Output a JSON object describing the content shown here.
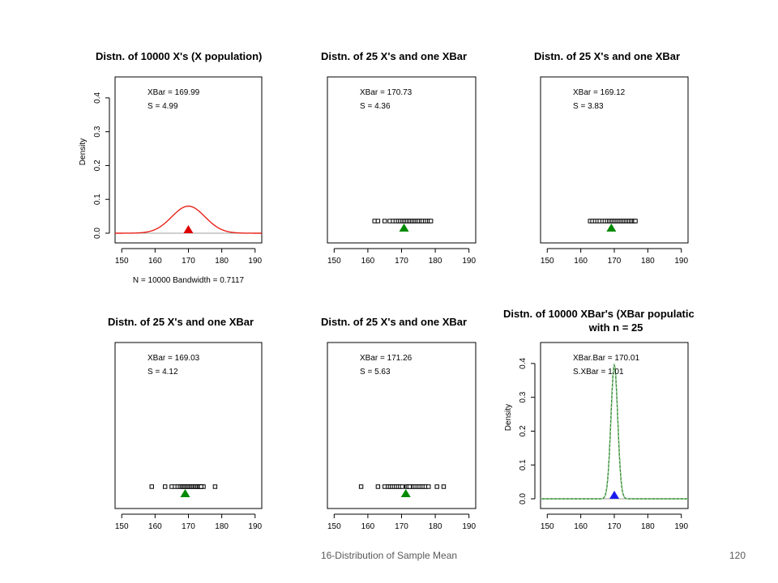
{
  "footer": {
    "title": "16-Distribution of Sample Mean",
    "page": "120"
  },
  "chart_data": [
    {
      "type": "line",
      "title": "Distn. of 10000 X's (X population)",
      "xlabel": "N = 10000   Bandwidth = 0.7117",
      "ylabel": "Density",
      "xlim": [
        148,
        192
      ],
      "ylim": [
        0,
        0.45
      ],
      "x_ticks": [
        "150",
        "160",
        "170",
        "180",
        "190"
      ],
      "y_ticks": [
        "0.0",
        "0.1",
        "0.2",
        "0.3",
        "0.4"
      ],
      "annotation_lines": [
        "XBar = 169.99",
        "S = 4.99"
      ],
      "curve": {
        "kind": "normal-density",
        "mean": 169.99,
        "sd": 4.99,
        "color": "#e8231a"
      },
      "marker": {
        "shape": "triangle",
        "x": 169.99,
        "color": "#e00000"
      },
      "baseline": true
    },
    {
      "type": "scatter",
      "title": "Distn. of  25 X's and one XBar",
      "xlim": [
        148,
        192
      ],
      "x_ticks": [
        "150",
        "160",
        "170",
        "180",
        "190"
      ],
      "annotation_lines": [
        "XBar = 170.73",
        "S = 4.36"
      ],
      "points": [
        162,
        163,
        165,
        166.5,
        167.5,
        168.3,
        169,
        169.6,
        170.2,
        170.7,
        171.2,
        171.7,
        172.2,
        172.7,
        173.2,
        173.7,
        174.2,
        174.7,
        175.2,
        175.8,
        176.3,
        177,
        177.6,
        178.2,
        178.7
      ],
      "marker": {
        "shape": "triangle",
        "x": 170.73,
        "color": "#008a00"
      }
    },
    {
      "type": "scatter",
      "title": "Distn. of  25 X's and one XBar",
      "xlim": [
        148,
        192
      ],
      "x_ticks": [
        "150",
        "160",
        "170",
        "180",
        "190"
      ],
      "annotation_lines": [
        "XBar = 169.12",
        "S = 3.83"
      ],
      "points": [
        162.8,
        163.5,
        164.3,
        165,
        165.7,
        166.5,
        167.2,
        167.9,
        168.5,
        169,
        169.5,
        170,
        170.5,
        171,
        171.5,
        172,
        172.5,
        173,
        173.5,
        174,
        174.5,
        175,
        175.5,
        176,
        176.3
      ],
      "marker": {
        "shape": "triangle",
        "x": 169.12,
        "color": "#008a00"
      }
    },
    {
      "type": "scatter",
      "title": "Distn. of  25 X's and one XBar",
      "xlim": [
        148,
        192
      ],
      "x_ticks": [
        "150",
        "160",
        "170",
        "180",
        "190"
      ],
      "annotation_lines": [
        "XBar = 169.03",
        "S = 4.12"
      ],
      "points": [
        159,
        163,
        165,
        166,
        166.8,
        167.5,
        168,
        168.4,
        168.8,
        169.2,
        169.6,
        170,
        170.4,
        170.8,
        171.2,
        171.6,
        172,
        172.4,
        172.8,
        173.2,
        173.6,
        174,
        174.5,
        178,
        173.8
      ],
      "marker": {
        "shape": "triangle",
        "x": 169.03,
        "color": "#008a00"
      }
    },
    {
      "type": "scatter",
      "title": "Distn. of  25 X's and one XBar",
      "xlim": [
        148,
        192
      ],
      "x_ticks": [
        "150",
        "160",
        "170",
        "180",
        "190"
      ],
      "annotation_lines": [
        "XBar = 171.26",
        "S = 5.63"
      ],
      "points": [
        158,
        163,
        165,
        166,
        166.6,
        167.2,
        167.8,
        168.4,
        169,
        169.6,
        170.2,
        171.5,
        173,
        173.6,
        174.2,
        174.8,
        175.4,
        176,
        176.6,
        177.2,
        178,
        180.5,
        182.5,
        171.9,
        172.4
      ],
      "marker": {
        "shape": "triangle",
        "x": 171.26,
        "color": "#008a00"
      }
    },
    {
      "type": "line",
      "title": "Distn. of  10000 XBar's (XBar populatic",
      "subtitle": "with n = 25",
      "ylabel": "Density",
      "xlim": [
        148,
        192
      ],
      "ylim": [
        0,
        0.45
      ],
      "x_ticks": [
        "150",
        "160",
        "170",
        "180",
        "190"
      ],
      "y_ticks": [
        "0.0",
        "0.1",
        "0.2",
        "0.3",
        "0.4"
      ],
      "annotation_lines": [
        "XBar.Bar = 170.01",
        "S.XBar = 1.01"
      ],
      "curve": {
        "kind": "normal-density",
        "mean": 170.01,
        "sd": 1.01,
        "color": "#2e8b2e",
        "dashed_overlay": true
      },
      "marker": {
        "shape": "triangle",
        "x": 170.01,
        "color": "#1a1aee"
      },
      "baseline": true
    }
  ]
}
